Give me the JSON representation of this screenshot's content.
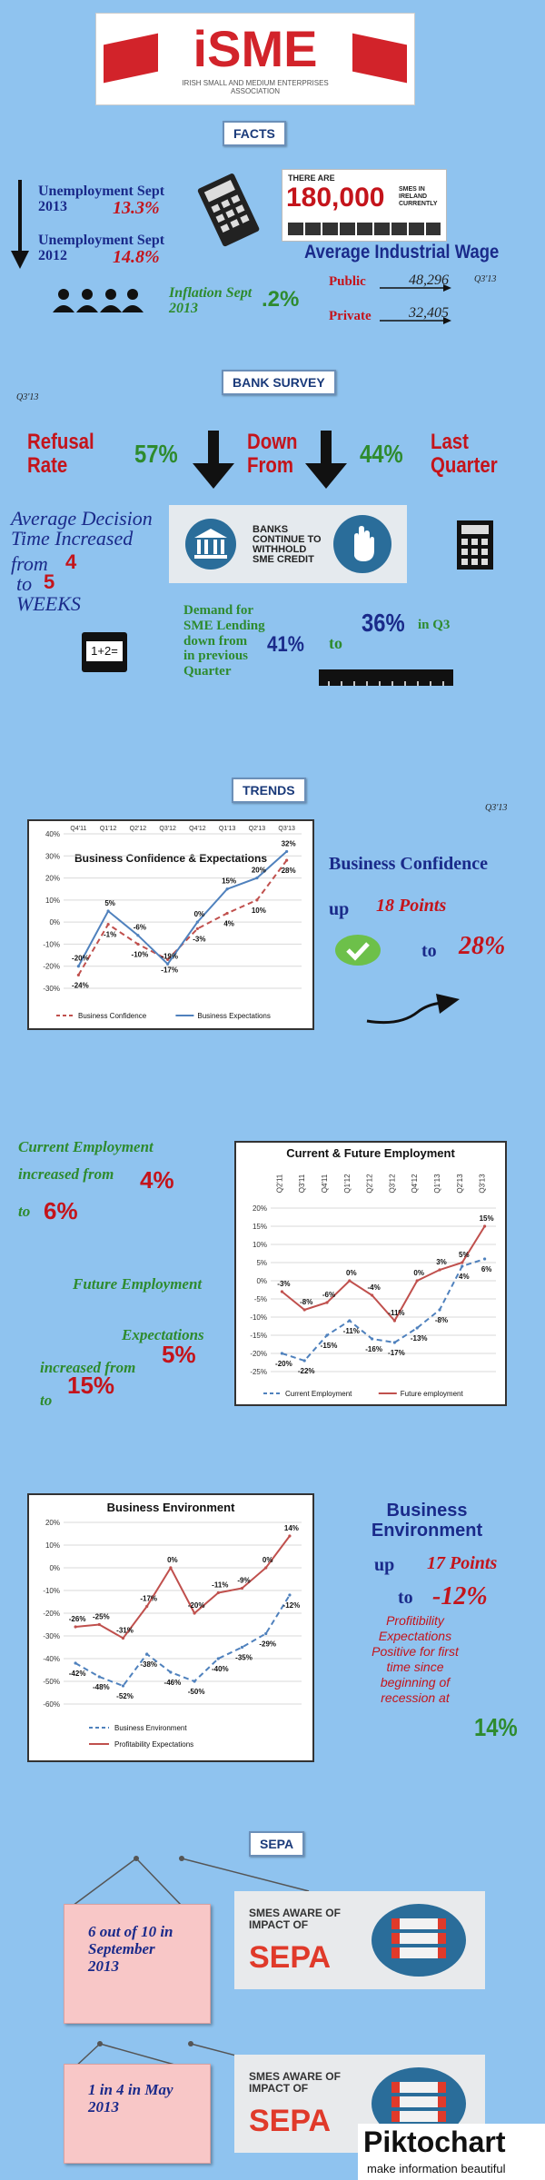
{
  "header": {
    "logo_text": "iSME",
    "logo_subtitle": "IRISH SMALL AND MEDIUM ENTERPRISES ASSOCIATION"
  },
  "facts": {
    "tag": "FACTS",
    "unemp_2013_label": "Unemployment Sept 2013",
    "unemp_2013_value": "13.3%",
    "unemp_2012_label": "Unemployment Sept 2012",
    "unemp_2012_value": "14.8%",
    "smes_pre": "THERE ARE",
    "smes_number": "180,000",
    "smes_post": "SMES IN IRELAND CURRENTLY",
    "wage_title": "Average Industrial Wage",
    "wage_q": "Q3'13",
    "public_label": "Public",
    "public_value": "48,296",
    "private_label": "Private",
    "private_value": "32,405",
    "inflation_label": "Inflation Sept 2013",
    "inflation_value": ".2%"
  },
  "bank": {
    "tag": "BANK SURVEY",
    "q": "Q3'13",
    "refusal_label": "Refusal Rate",
    "refusal_value": "57%",
    "down_from": "Down From",
    "down_value": "44%",
    "last_quarter": "Last Quarter",
    "decision_line1": "Average Decision Time Increased",
    "decision_from": "from",
    "decision_from_value": "4",
    "decision_to": "to",
    "decision_to_value": "5",
    "decision_weeks": "WEEKS",
    "banks_card": "BANKS CONTINUE TO WITHHOLD SME CREDIT",
    "demand_text": "Demand for SME Lending down from",
    "demand_value": "41%",
    "demand_prev": "in previous Quarter",
    "demand_to": "to",
    "demand_to_value": "36%",
    "demand_q3": "in Q3",
    "calc_text": "1+2="
  },
  "trends": {
    "tag": "TRENDS",
    "q": "Q3'13",
    "conf_title": "Business Confidence",
    "conf_up": "up",
    "conf_points": "18 Points",
    "conf_to": "to",
    "conf_value": "28%"
  },
  "employment": {
    "current_label": "Current Employment increased from",
    "current_from": "4%",
    "current_to_label": "to",
    "current_to": "6%",
    "future_label": "Future Employment",
    "future_expect": "Expectations",
    "future_increased": "increased from",
    "future_from": "5%",
    "future_to_label": "to",
    "future_to": "15%"
  },
  "environment": {
    "title": "Business Environment",
    "up": "up",
    "points": "17 Points",
    "to": "to",
    "value": "-12%",
    "profit_text": "Profitibility Expectations Positive for first time since beginning of recession at",
    "profit_value": "14%"
  },
  "sepa": {
    "tag": "SEPA",
    "card1": "6 out of 10 in September 2013",
    "card2": "1 in 4 in May 2013",
    "aware_text": "SMES AWARE OF IMPACT OF",
    "aware_word": "SEPA"
  },
  "footer": {
    "brand": "Piktochart",
    "tagline": "make information beautiful"
  },
  "colors": {
    "background": "#8fc3ef",
    "navy": "#1a2a8a",
    "red": "#c4141b",
    "green": "#2e8b2e"
  },
  "chart_data": [
    {
      "type": "line",
      "title": "Business Confidence & Expectations",
      "categories": [
        "Q4'11",
        "Q1'12",
        "Q2'12",
        "Q3'12",
        "Q4'12",
        "Q1'13",
        "Q2'13",
        "Q3'13"
      ],
      "series": [
        {
          "name": "Business Confidence",
          "values": [
            -24,
            -1,
            -10,
            -17,
            -3,
            4,
            10,
            28
          ],
          "labels": [
            "-24%",
            "-1%",
            "-10%",
            "-17%",
            "-3%",
            "4%",
            "10%",
            "28%"
          ]
        },
        {
          "name": "Business Expectations",
          "values": [
            -20,
            5,
            -6,
            -19,
            0,
            15,
            20,
            32
          ],
          "labels": [
            "-20%",
            "5%",
            "-6%",
            "-19%",
            "0%",
            "15%",
            "20%",
            "32%"
          ]
        }
      ],
      "ylim": [
        -30,
        40
      ],
      "yticks": [
        "40%",
        "30%",
        "20%",
        "10%",
        "0%",
        "-10%",
        "-20%",
        "-30%"
      ],
      "legend": "bottom"
    },
    {
      "type": "line",
      "title": "Current & Future Employment",
      "categories": [
        "Q2'11",
        "Q3'11",
        "Q4'11",
        "Q1'12",
        "Q2'12",
        "Q3'12",
        "Q4'12",
        "Q1'13",
        "Q2'13",
        "Q3'13"
      ],
      "series": [
        {
          "name": "Current Employment",
          "values": [
            -20,
            -22,
            -15,
            -11,
            -16,
            -17,
            -13,
            -8,
            4,
            6
          ],
          "labels": [
            "-20%",
            "-22%",
            "-15%",
            "-11%",
            "-16%",
            "-17%",
            "-13%",
            "-8%",
            "4%",
            "6%"
          ]
        },
        {
          "name": "Future employment",
          "values": [
            -3,
            -8,
            -6,
            0,
            -4,
            -11,
            0,
            3,
            5,
            15
          ],
          "labels": [
            "-3%",
            "-8%",
            "-6%",
            "0%",
            "-4%",
            "-11%",
            "0%",
            "3%",
            "5%",
            "15%"
          ]
        }
      ],
      "ylim": [
        -25,
        20
      ],
      "yticks": [
        "20%",
        "15%",
        "10%",
        "5%",
        "0%",
        "-5%",
        "-10%",
        "-15%",
        "-20%",
        "-25%"
      ],
      "legend": "bottom"
    },
    {
      "type": "line",
      "title": "Business Environment",
      "series": [
        {
          "name": "Business Environment",
          "values": [
            -42,
            -48,
            -52,
            -38,
            -46,
            -50,
            -40,
            -35,
            -29,
            -12
          ],
          "labels": [
            "-42%",
            "-48%",
            "-52%",
            "-38%",
            "-46%",
            "-50%",
            "-40%",
            "-35%",
            "-29%",
            "-12%"
          ]
        },
        {
          "name": "Profitability Expectations",
          "values": [
            -26,
            -25,
            -31,
            -17,
            0,
            -20,
            -11,
            -9,
            0,
            14
          ],
          "labels": [
            "-26%",
            "-25%",
            "-31%",
            "-17%",
            "0%",
            "-20%",
            "-11%",
            "-9%",
            "0%",
            "14%"
          ]
        }
      ],
      "ylim": [
        -60,
        20
      ],
      "yticks": [
        "20%",
        "10%",
        "0%",
        "-10%",
        "-20%",
        "-30%",
        "-40%",
        "-50%",
        "-60%"
      ],
      "legend": "bottom"
    }
  ]
}
